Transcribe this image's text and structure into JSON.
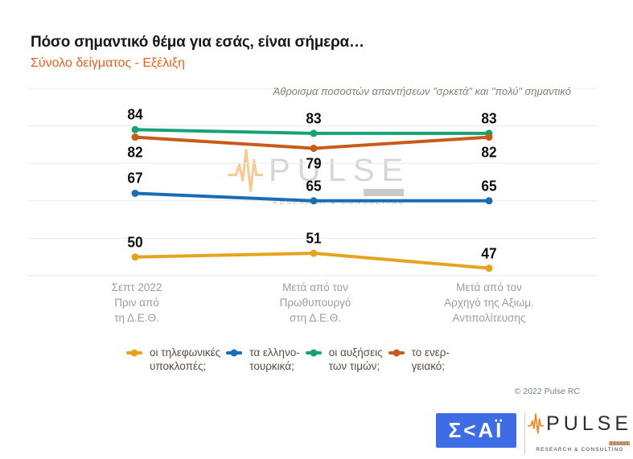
{
  "header": {
    "title": "Πόσο σημαντικό θέμα για εσάς, είναι σήμερα…",
    "subtitle": "Σύνολο δείγματος - Εξέλιξη",
    "note": "Άθροισμα ποσοστών απαντήσεων \"σρκετά\" και \"πολύ\" σημαντικό"
  },
  "chart_data": {
    "type": "line",
    "x_labels": [
      [
        "Σεπτ 2022",
        "Πριν από",
        "τη Δ.Ε.Θ."
      ],
      [
        "Μετά από τον",
        "Πρωθυπουργό",
        "στη Δ.Ε.Θ."
      ],
      [
        "Μετά από τον",
        "Αρχηγό της Αξιωμ.",
        "Αντιπολίτευσης"
      ]
    ],
    "series": [
      {
        "name": "οι τηλεφωνικές υποκλοπές;",
        "color": "#E6A41E",
        "values": [
          50,
          51,
          47
        ],
        "label_side": "above"
      },
      {
        "name": "τα ελληνο-τουρκικά;",
        "color": "#1B6CB5",
        "values": [
          67,
          65,
          65
        ],
        "label_side": "above"
      },
      {
        "name": "οι αυξήσεις των τιμών;",
        "color": "#18A077",
        "values": [
          84,
          83,
          83
        ],
        "label_side": "above"
      },
      {
        "name": "το ενεργειακό;",
        "color": "#C75B17",
        "values": [
          82,
          79,
          82
        ],
        "label_side": "below"
      }
    ],
    "ylim": [
      45,
      95
    ],
    "grid_values": [
      95,
      85,
      75,
      65,
      55,
      45
    ],
    "grid": true,
    "legend_position": "bottom",
    "grid_color": "#EAEAEA"
  },
  "legend": {
    "items": [
      {
        "line1": "οι τηλεφωνικές",
        "line2": "υποκλοπές;",
        "series": 0
      },
      {
        "line1": "τα ελληνο-",
        "line2": "τουρκικά;",
        "series": 1
      },
      {
        "line1": "οι αυξήσεις",
        "line2": "των τιμών;",
        "series": 2
      },
      {
        "line1": "το ενερ-",
        "line2": "γειακό;",
        "series": 3
      }
    ]
  },
  "watermark": {
    "text": "PULSE",
    "subtext": "RESEARCH & CONSULTING"
  },
  "footer": {
    "copyright": "© 2022 Pulse RC",
    "skai_logo_text": "Σ<ΑΪ",
    "skai_blue": "#3D6CE4",
    "pulse_logo_text": "PULSE",
    "pulse_logo_subtext": "RESEARCH & CONSULTING",
    "pulse_orange": "#F08418"
  }
}
